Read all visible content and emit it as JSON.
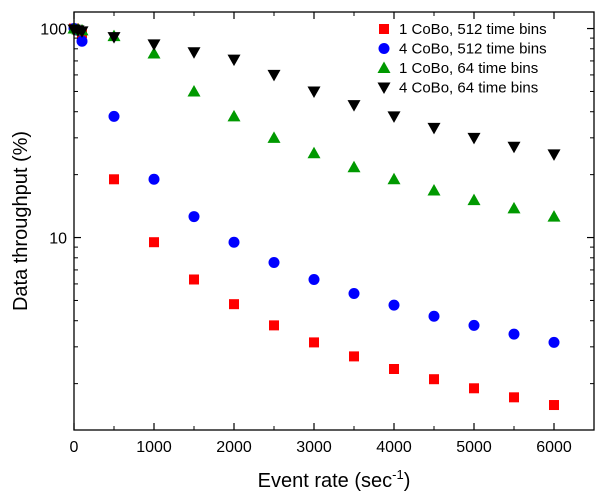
{
  "chart_data": {
    "type": "scatter",
    "title": "",
    "xlabel": "Event rate (sec",
    "xlabel_sup": "-1",
    "xlabel_suffix": ")",
    "ylabel": "Data throughput (%)",
    "xlim": [
      0,
      6500
    ],
    "ylim": [
      1.2,
      120
    ],
    "yscale": "log",
    "grid": false,
    "legend_position": "top-right",
    "x_ticks": [
      0,
      1000,
      2000,
      3000,
      4000,
      5000,
      6000
    ],
    "x_tick_labels": [
      "0",
      "1000",
      "2000",
      "3000",
      "4000",
      "5000",
      "6000"
    ],
    "y_ticks": [
      10,
      100
    ],
    "y_tick_labels": [
      "10",
      "100"
    ],
    "series": [
      {
        "name": "1 CoBo, 512 time bins",
        "marker": "square",
        "color": "#ff0000",
        "x": [
          0,
          50,
          100,
          500,
          1000,
          1500,
          2000,
          2500,
          3000,
          3500,
          4000,
          4500,
          5000,
          5500,
          6000
        ],
        "y": [
          100,
          98,
          95,
          19,
          9.5,
          6.3,
          4.8,
          3.8,
          3.15,
          2.7,
          2.35,
          2.1,
          1.9,
          1.72,
          1.58
        ]
      },
      {
        "name": "4 CoBo, 512 time bins",
        "marker": "circle",
        "color": "#0000ff",
        "x": [
          0,
          50,
          100,
          500,
          1000,
          1500,
          2000,
          2500,
          3000,
          3500,
          4000,
          4500,
          5000,
          5500,
          6000
        ],
        "y": [
          100,
          98,
          87,
          38,
          19,
          12.6,
          9.5,
          7.6,
          6.3,
          5.4,
          4.75,
          4.2,
          3.8,
          3.45,
          3.15
        ]
      },
      {
        "name": "1 CoBo, 64 time bins",
        "marker": "triangle-up",
        "color": "#009900",
        "x": [
          0,
          50,
          100,
          500,
          1000,
          1500,
          2000,
          2500,
          3000,
          3500,
          4000,
          4500,
          5000,
          5500,
          6000
        ],
        "y": [
          100,
          99,
          98,
          92,
          76,
          50,
          38,
          30,
          25.3,
          21.7,
          19,
          16.8,
          15.1,
          13.8,
          12.6
        ]
      },
      {
        "name": "4 CoBo, 64 time bins",
        "marker": "triangle-down",
        "color": "#000000",
        "x": [
          0,
          50,
          100,
          500,
          1000,
          1500,
          2000,
          2500,
          3000,
          3500,
          4000,
          4500,
          5000,
          5500,
          6000
        ],
        "y": [
          99,
          98,
          97,
          91,
          84,
          77,
          71,
          60,
          50,
          43,
          38,
          33.5,
          30,
          27.2,
          25
        ]
      }
    ]
  }
}
